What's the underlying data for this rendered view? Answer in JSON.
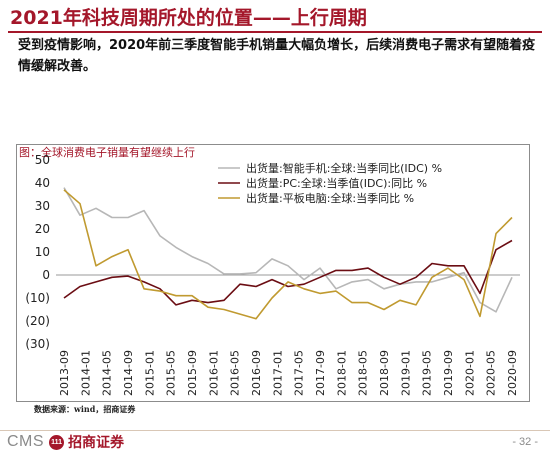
{
  "header": {
    "title": "2021年科技周期所处的位置——上行周期"
  },
  "body": {
    "text": "受到疫情影响，2020年前三季度智能手机销量大幅负增长，后续消费电子需求有望随着疫情缓解改善。"
  },
  "source": "数据来源：wind，招商证券",
  "footer": {
    "logo_cms": "CMS",
    "logo_badge": "111",
    "logo_cn": "招商证券",
    "page": "- 32 -"
  },
  "colors": {
    "brand": "#a4172a",
    "smartphone": "#b7b7b7",
    "pc": "#6b0d13",
    "tablet": "#c09a30"
  },
  "chart_data": {
    "type": "line",
    "title": "图：全球消费电子销量有望继续上行",
    "ylim": [
      -30,
      50
    ],
    "yticks": [
      "50",
      "40",
      "30",
      "20",
      "10",
      "0",
      "(10)",
      "(20)",
      "(30)"
    ],
    "x_tick_labels": [
      "2013-09",
      "2014-01",
      "2014-05",
      "2014-09",
      "2015-01",
      "2015-05",
      "2015-09",
      "2016-01",
      "2016-05",
      "2016-09",
      "2017-01",
      "2017-05",
      "2017-09",
      "2018-01",
      "2018-05",
      "2018-09",
      "2019-01",
      "2019-05",
      "2019-09",
      "2020-01",
      "2020-05",
      "2020-09"
    ],
    "x": [
      "2013-09",
      "2013-12",
      "2014-03",
      "2014-06",
      "2014-09",
      "2014-12",
      "2015-03",
      "2015-06",
      "2015-09",
      "2015-12",
      "2016-03",
      "2016-06",
      "2016-09",
      "2016-12",
      "2017-03",
      "2017-06",
      "2017-09",
      "2017-12",
      "2018-03",
      "2018-06",
      "2018-09",
      "2018-12",
      "2019-03",
      "2019-06",
      "2019-09",
      "2019-12",
      "2020-03",
      "2020-06",
      "2020-09"
    ],
    "legend_position": "top-right",
    "grid": false,
    "series": [
      {
        "name": "出货量:智能手机:全球:当季同比(IDC) %",
        "values": [
          38,
          26,
          29,
          25,
          25,
          28,
          17,
          12,
          8,
          5,
          0.5,
          0.5,
          1,
          7,
          4,
          -2,
          3,
          -6,
          -3,
          -2,
          -6,
          -4,
          -3,
          -3,
          -1,
          1,
          -12,
          -16,
          -1
        ]
      },
      {
        "name": "出货量:PC:全球:当季值(IDC):同比 %",
        "values": [
          -10,
          -5,
          -3,
          -1,
          -0.5,
          -3,
          -6,
          -13,
          -11,
          -12,
          -11,
          -4,
          -5,
          -2,
          -5,
          -4,
          -1,
          2,
          2,
          3,
          -1,
          -4,
          -1,
          5,
          4,
          4,
          -8,
          11,
          15
        ]
      },
      {
        "name": "出货量:平板电脑:全球:当季同比 %",
        "values": [
          37,
          31,
          4,
          8,
          11,
          -6,
          -7,
          -9,
          -9,
          -14,
          -15,
          -17,
          -19,
          -10,
          -3,
          -6,
          -8,
          -7,
          -12,
          -12,
          -15,
          -11,
          -13,
          -1,
          3,
          -2,
          -18,
          18,
          25
        ]
      }
    ]
  }
}
